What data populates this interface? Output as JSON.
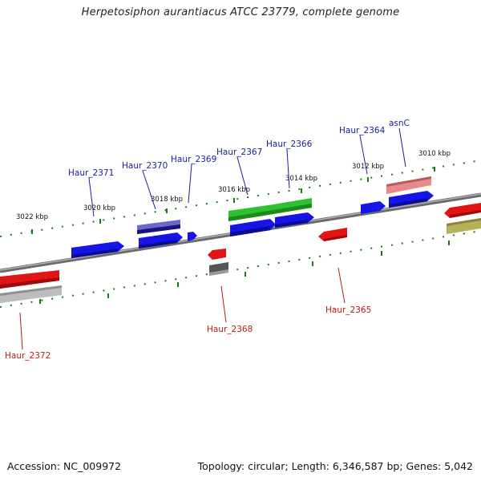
{
  "title": "Herpetosiphon aurantiacus ATCC 23779, complete genome",
  "footer": {
    "accession": "Accession: NC_009972",
    "summary": "Topology: circular; Length: 6,346,587 bp; Genes: 5,042"
  },
  "scale_labels": [
    {
      "text": "3022 kbp"
    },
    {
      "text": "3020 kbp"
    },
    {
      "text": "3018 kbp"
    },
    {
      "text": "3016 kbp"
    },
    {
      "text": "3014 kbp"
    },
    {
      "text": "3012 kbp"
    },
    {
      "text": "3010 kbp"
    }
  ],
  "gene_labels": [
    {
      "text": "Haur_2371",
      "strand": "forward"
    },
    {
      "text": "Haur_2370",
      "strand": "forward"
    },
    {
      "text": "Haur_2369",
      "strand": "forward"
    },
    {
      "text": "Haur_2367",
      "strand": "forward"
    },
    {
      "text": "Haur_2366",
      "strand": "forward"
    },
    {
      "text": "Haur_2364",
      "strand": "forward"
    },
    {
      "text": "asnC",
      "strand": "forward"
    },
    {
      "text": "Haur_2372",
      "strand": "reverse"
    },
    {
      "text": "Haur_2368",
      "strand": "reverse"
    },
    {
      "text": "Haur_2365",
      "strand": "reverse"
    }
  ],
  "colors": {
    "forward_label": "#1a1aa6",
    "reverse_label": "#c01818",
    "tick": "#1a7a1a",
    "backbone": "#8a8a8a",
    "cds_forward": "#1515e6",
    "cds_reverse": "#e01515",
    "cds_green": "#2ec02e",
    "cds_navy": "#16167a",
    "cds_lightred": "#e88a8a",
    "cds_gray": "#555555",
    "cds_lightgray": "#bdbdbd",
    "cds_olive": "#b5b05a"
  }
}
